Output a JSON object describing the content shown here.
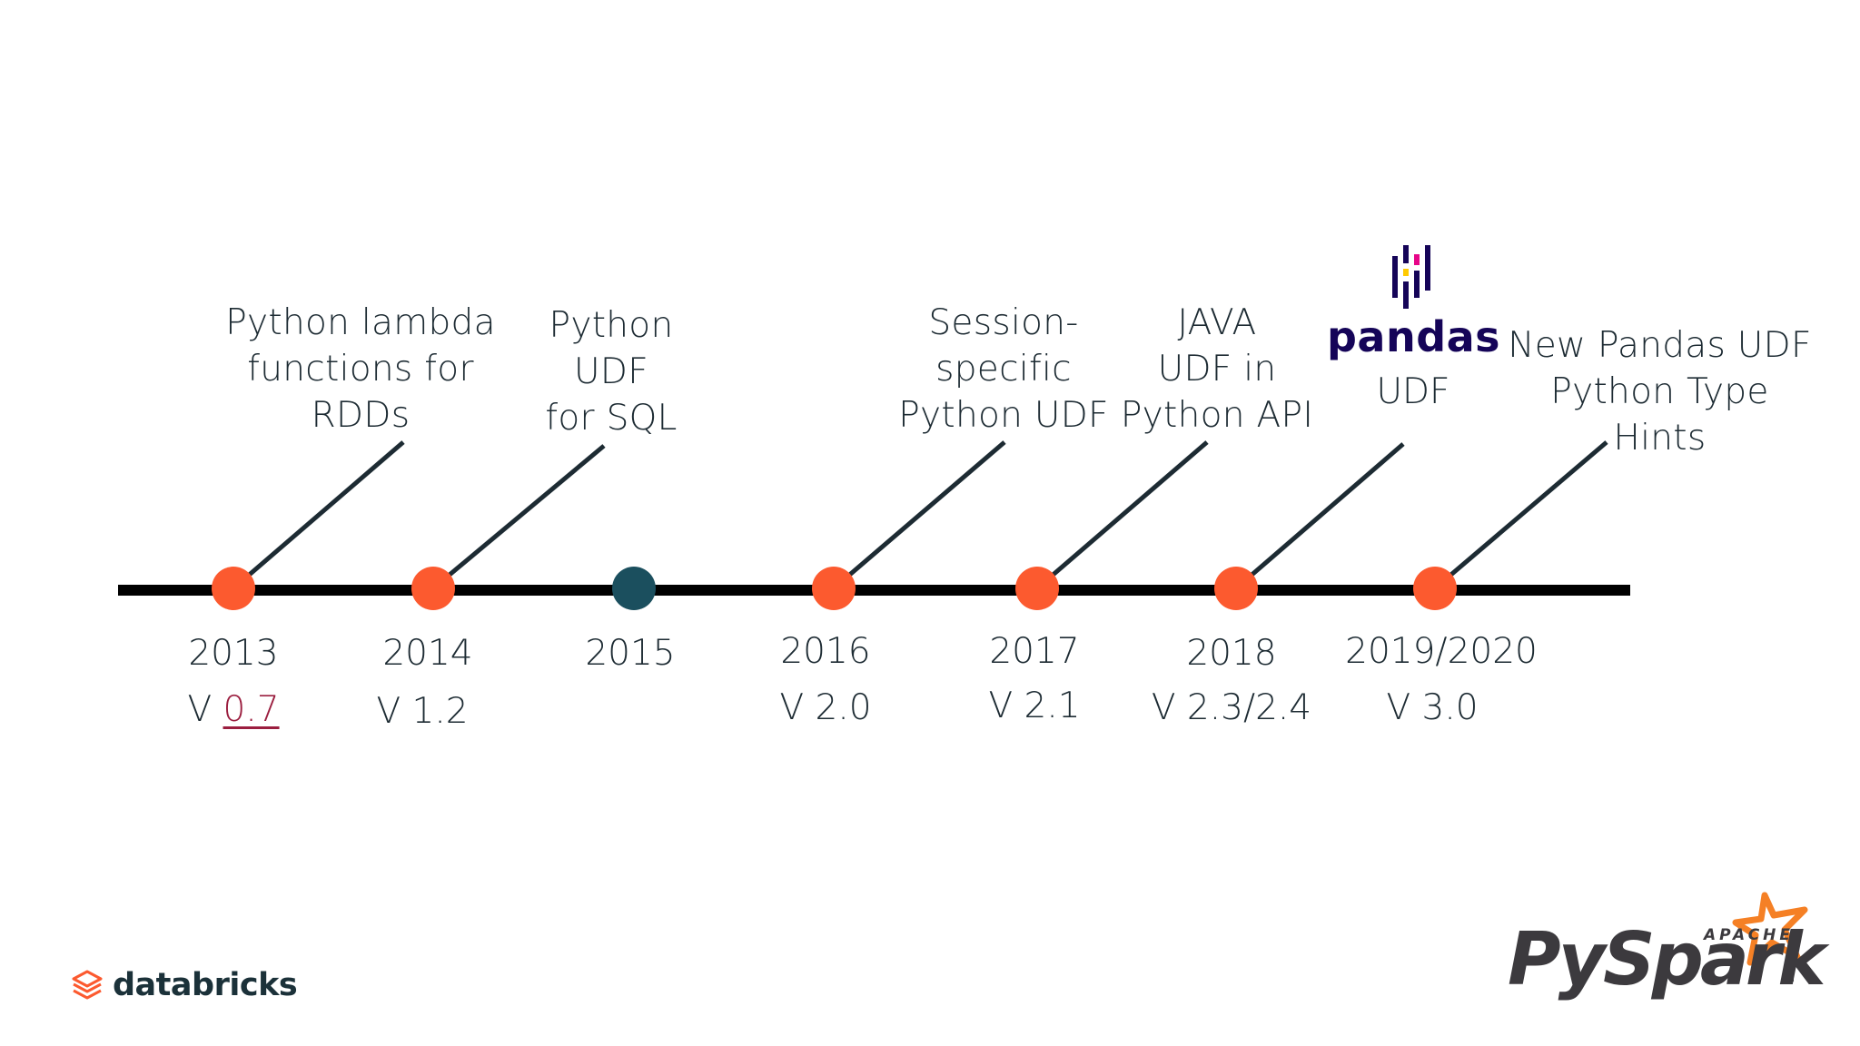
{
  "timeline": {
    "events": [
      {
        "year": "2013",
        "version_prefix": "V ",
        "version_link": "0.7",
        "label": "Python lambda\nfunctions for\nRDDs",
        "color": "#fc5a2f"
      },
      {
        "year": "2014",
        "version": "V 1.2",
        "label": "Python\nUDF\nfor SQL",
        "color": "#fc5a2f"
      },
      {
        "year": "2015",
        "version": "",
        "label": "",
        "color": "#1b4f5e"
      },
      {
        "year": "2016",
        "version": "V 2.0",
        "label": "Session-\nspecific\nPython UDF",
        "color": "#fc5a2f"
      },
      {
        "year": "2017",
        "version": "V 2.1",
        "label": "JAVA\nUDF in\nPython API",
        "color": "#fc5a2f"
      },
      {
        "year": "2018",
        "version": "V 2.3/2.4",
        "label": "UDF",
        "logo": "pandas",
        "color": "#fc5a2f"
      },
      {
        "year": "2019/2020",
        "version": "V 3.0",
        "label": "New Pandas UDF\nPython Type Hints",
        "color": "#fc5a2f"
      }
    ]
  },
  "logos": {
    "pandas": "pandas",
    "databricks": "databricks",
    "spark_apache": "APACHE",
    "spark_py": "Py",
    "spark_word": "Spark",
    "spark_tm": "™"
  },
  "colors": {
    "accent": "#fc5a2f",
    "dot_dark": "#1b4f5e",
    "line": "#000000",
    "link": "#9b1e3f",
    "pandas_navy": "#150458"
  }
}
